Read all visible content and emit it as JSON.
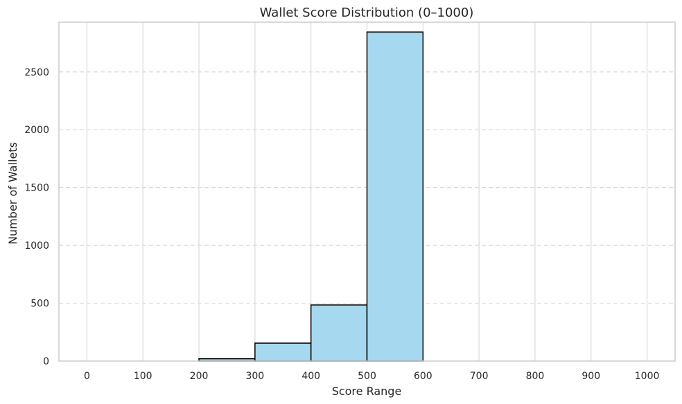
{
  "chart_data": {
    "type": "bar",
    "title": "Wallet Score Distribution (0–1000)",
    "xlabel": "Score Range",
    "ylabel": "Number of Wallets",
    "xlim": [
      -50,
      1050
    ],
    "ylim": [
      0,
      2930
    ],
    "x_ticks": [
      0,
      100,
      200,
      300,
      400,
      500,
      600,
      700,
      800,
      900,
      1000
    ],
    "y_ticks": [
      0,
      500,
      1000,
      1500,
      2000,
      2500
    ],
    "bins": [
      {
        "range": [
          0,
          100
        ],
        "value": 0
      },
      {
        "range": [
          100,
          200
        ],
        "value": 0
      },
      {
        "range": [
          200,
          300
        ],
        "value": 20
      },
      {
        "range": [
          300,
          400
        ],
        "value": 155
      },
      {
        "range": [
          400,
          500
        ],
        "value": 485
      },
      {
        "range": [
          500,
          600
        ],
        "value": 2845
      },
      {
        "range": [
          600,
          700
        ],
        "value": 0
      },
      {
        "range": [
          700,
          800
        ],
        "value": 0
      },
      {
        "range": [
          800,
          900
        ],
        "value": 0
      },
      {
        "range": [
          900,
          1000
        ],
        "value": 0
      }
    ],
    "grid": {
      "x": "solid",
      "y": "dashed"
    },
    "colors": {
      "bar_fill": "#a6d9ef",
      "bar_edge": "#000000",
      "grid": "#d9d9d9",
      "frame": "#cccccc",
      "text": "#262626"
    }
  }
}
